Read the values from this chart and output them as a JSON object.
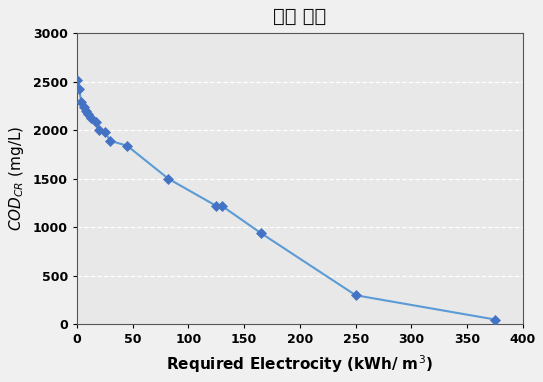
{
  "title": "선박 폐수",
  "xlabel": "Required Electrocity (kWh/m$^3$)",
  "x": [
    0,
    2,
    4,
    6,
    8,
    10,
    13,
    17,
    20,
    25,
    30,
    45,
    82,
    125,
    130,
    165,
    250,
    375
  ],
  "y": [
    2520,
    2420,
    2290,
    2240,
    2200,
    2170,
    2130,
    2080,
    2000,
    1980,
    1890,
    1840,
    1500,
    1220,
    1220,
    940,
    300,
    50
  ],
  "xlim": [
    0,
    400
  ],
  "ylim": [
    0,
    3000
  ],
  "xticks": [
    0,
    50,
    100,
    150,
    200,
    250,
    300,
    350,
    400
  ],
  "yticks": [
    0,
    500,
    1000,
    1500,
    2000,
    2500,
    3000
  ],
  "line_color": "#5B9BD5",
  "marker_color": "#4472C4",
  "plot_bg_color": "#e8e8e8",
  "fig_bg_color": "#f0f0f0",
  "grid_color": "#ffffff",
  "title_fontsize": 14,
  "label_fontsize": 11,
  "tick_fontsize": 9
}
